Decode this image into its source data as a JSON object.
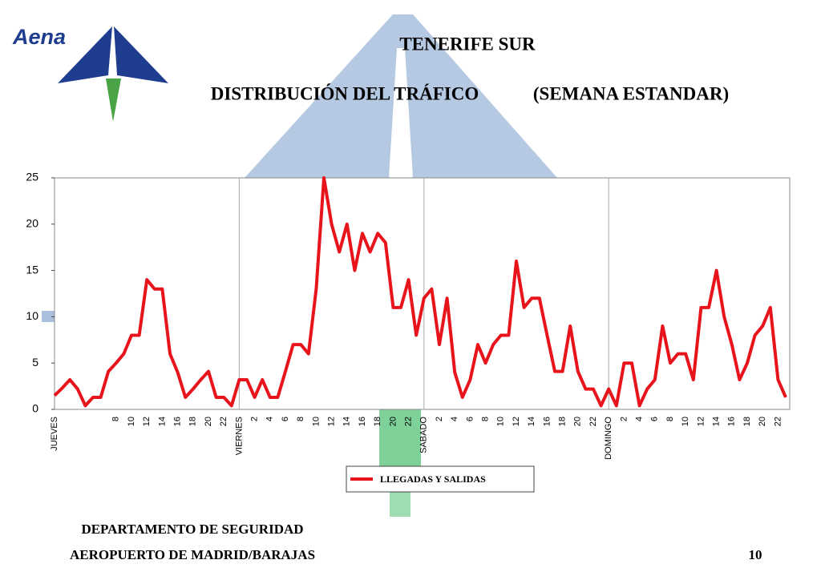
{
  "logo": "Aena",
  "chart_data": {
    "type": "line",
    "title": "TENERIFE SUR",
    "subtitle": [
      "DISTRIBUCIÓN DEL TRÁFICO",
      "(SEMANA ESTANDAR)"
    ],
    "categories": [
      "JUEVES",
      null,
      null,
      null,
      null,
      null,
      null,
      null,
      "8",
      null,
      "10",
      null,
      "12",
      null,
      "14",
      null,
      "16",
      null,
      "18",
      null,
      "20",
      null,
      "22",
      null,
      "VIERNES",
      null,
      "2",
      null,
      "4",
      null,
      "6",
      null,
      "8",
      null,
      "10",
      null,
      "12",
      null,
      "14",
      null,
      "16",
      null,
      "18",
      null,
      "20",
      null,
      "22",
      null,
      "SABADO",
      null,
      "2",
      null,
      "4",
      null,
      "6",
      null,
      "8",
      null,
      "10",
      null,
      "12",
      null,
      "14",
      null,
      "16",
      null,
      "18",
      null,
      "20",
      null,
      "22",
      null,
      "DOMINGO",
      null,
      "2",
      null,
      "4",
      null,
      "6",
      null,
      "8",
      null,
      "10",
      null,
      "12",
      null,
      "14",
      null,
      "16",
      null,
      "18",
      null,
      "20",
      null,
      "22",
      null
    ],
    "series": [
      {
        "name": "LLEGADAS Y SALIDAS",
        "color": "#e8141c",
        "values": [
          1.5,
          2.3,
          3.2,
          2.2,
          0.4,
          1.3,
          1.3,
          4.1,
          5,
          6,
          8,
          8,
          14,
          13,
          13,
          6,
          4,
          1.3,
          2.2,
          3.2,
          4.1,
          1.3,
          1.3,
          0.4,
          3.2,
          3.2,
          1.3,
          3.2,
          1.3,
          1.3,
          4.1,
          7,
          7,
          6,
          13,
          25,
          20,
          17,
          20,
          15,
          19,
          17,
          19,
          18,
          11,
          11,
          14,
          8,
          12,
          13,
          7,
          12,
          4,
          1.3,
          3.2,
          7,
          5,
          7,
          8,
          8,
          16,
          11,
          12,
          12,
          8,
          4.1,
          4.1,
          9,
          4.1,
          2.2,
          2.2,
          0.4,
          2.2,
          0.4,
          5,
          5,
          0.4,
          2.2,
          3.2,
          9,
          5,
          6,
          6,
          3.2,
          11,
          11,
          15,
          10,
          7,
          3.2,
          5,
          8,
          9,
          11,
          3.2,
          1.3
        ]
      }
    ],
    "ylim": [
      0,
      25
    ],
    "yticks": [
      0,
      5,
      10,
      15,
      20,
      25
    ]
  },
  "footer": {
    "department": "DEPARTAMENTO DE SEGURIDAD",
    "airport": "AEROPUERTO DE MADRID/BARAJAS",
    "page": 10
  }
}
